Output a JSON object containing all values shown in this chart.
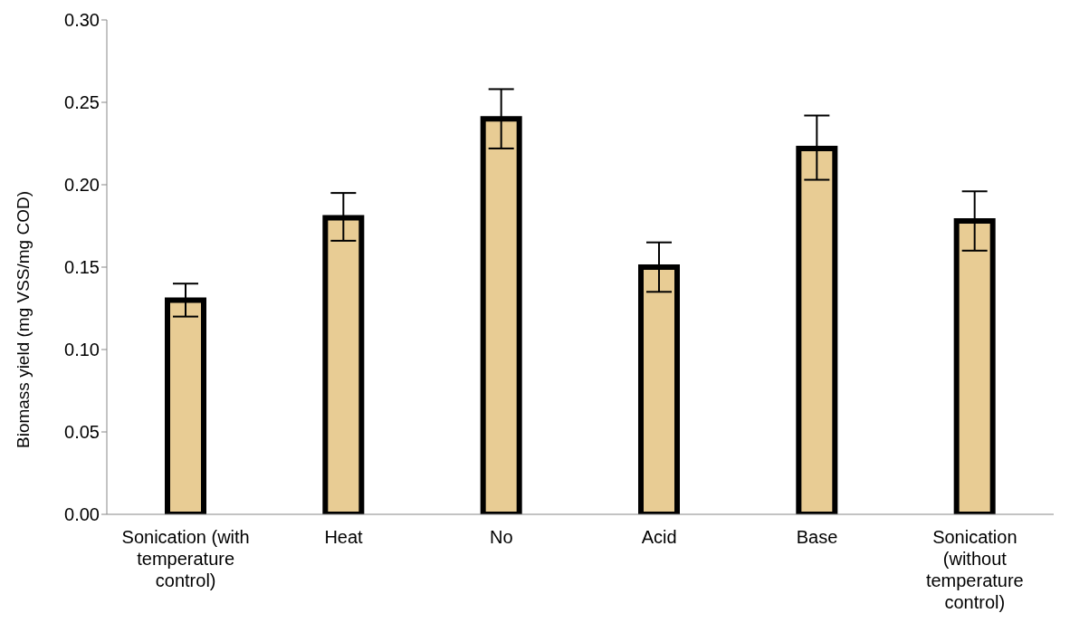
{
  "chart_data": {
    "type": "bar",
    "ylabel": "Biomass yield (mg VSS/mg COD)",
    "categories": [
      "Sonication (with temperature control)",
      "Heat",
      "No",
      "Acid",
      "Base",
      "Sonication (without temperature control)"
    ],
    "values": [
      0.13,
      0.18,
      0.24,
      0.15,
      0.222,
      0.178
    ],
    "errors": [
      [
        0.12,
        0.14
      ],
      [
        0.166,
        0.195
      ],
      [
        0.222,
        0.258
      ],
      [
        0.135,
        0.165
      ],
      [
        0.203,
        0.242
      ],
      [
        0.16,
        0.196
      ]
    ],
    "color": "#e8cc94",
    "ylim": [
      0,
      0.3
    ],
    "yticks": [
      {
        "value": 0,
        "label": "0.00"
      },
      {
        "value": 0.05,
        "label": "0.05"
      },
      {
        "value": 0.1,
        "label": "0.10"
      },
      {
        "value": 0.15,
        "label": "0.15"
      },
      {
        "value": 0.2,
        "label": "0.20"
      },
      {
        "value": 0.25,
        "label": "0.25"
      },
      {
        "value": 0.3,
        "label": "0.30"
      }
    ],
    "grid": false,
    "legend": false
  }
}
